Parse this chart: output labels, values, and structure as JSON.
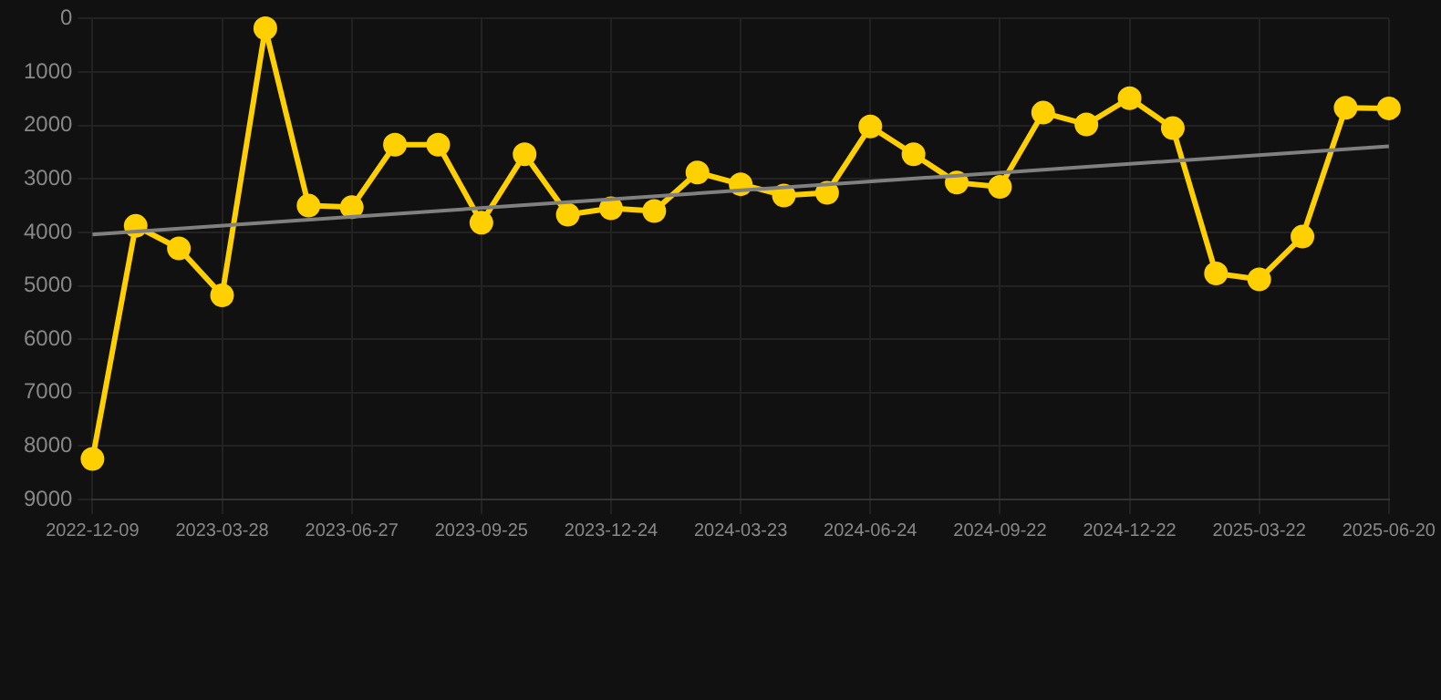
{
  "chart_data": {
    "type": "line",
    "categories": [
      "2022-12-09",
      null,
      null,
      "2023-03-28",
      null,
      null,
      "2023-06-27",
      null,
      null,
      "2023-09-25",
      null,
      null,
      "2023-12-24",
      null,
      null,
      "2024-03-23",
      null,
      null,
      "2024-06-24",
      null,
      null,
      "2024-09-22",
      null,
      null,
      "2024-12-22",
      null,
      null,
      "2025-03-22",
      null,
      null,
      "2025-06-20"
    ],
    "series": [
      {
        "color": "#ffd000",
        "marker": "circle",
        "values": [
          8240,
          3880,
          4300,
          5180,
          180,
          3500,
          3530,
          2360,
          2360,
          3820,
          2540,
          3670,
          3550,
          3600,
          2880,
          3100,
          3310,
          3260,
          2020,
          2540,
          3070,
          3150,
          1760,
          1980,
          1490,
          2050,
          4770,
          4880,
          4080,
          1670,
          1680
        ]
      },
      {
        "type": "line",
        "color": "#808080",
        "marker": "none",
        "values": [
          4040,
          null,
          null,
          null,
          null,
          null,
          null,
          null,
          null,
          null,
          null,
          null,
          null,
          null,
          null,
          null,
          null,
          null,
          null,
          null,
          null,
          null,
          null,
          null,
          null,
          null,
          null,
          null,
          null,
          null,
          2390
        ]
      }
    ],
    "ylim": [
      9000,
      0
    ],
    "yticks": [
      0,
      1000,
      2000,
      3000,
      4000,
      5000,
      6000,
      7000,
      8000,
      9000
    ],
    "grid": true
  }
}
